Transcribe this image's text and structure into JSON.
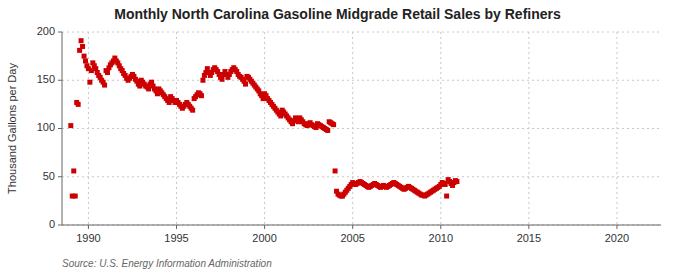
{
  "chart_data": {
    "type": "scatter",
    "title": "Monthly North Carolina Gasoline Midgrade Retail Sales by Refiners",
    "y_label": "Thousand Gallons per Day",
    "source": "Source: U.S. Energy Information Administration",
    "color": "#cc0000",
    "marker": "square",
    "grid": true,
    "xlim": [
      1988.5,
      2022.5
    ],
    "ylim": [
      0,
      200
    ],
    "xticks": [
      1990,
      1995,
      2000,
      2005,
      2010,
      2015,
      2020
    ],
    "yticks": [
      0,
      50,
      100,
      150,
      200
    ],
    "x": [
      1989.0,
      1989.083,
      1989.167,
      1989.25,
      1989.333,
      1989.417,
      1989.5,
      1989.583,
      1989.667,
      1989.75,
      1989.833,
      1989.917,
      1990.0,
      1990.083,
      1990.167,
      1990.25,
      1990.333,
      1990.417,
      1990.5,
      1990.583,
      1990.667,
      1990.75,
      1990.833,
      1990.917,
      1991.0,
      1991.083,
      1991.167,
      1991.25,
      1991.333,
      1991.417,
      1991.5,
      1991.583,
      1991.667,
      1991.75,
      1991.833,
      1991.917,
      1992.0,
      1992.083,
      1992.167,
      1992.25,
      1992.333,
      1992.417,
      1992.5,
      1992.583,
      1992.667,
      1992.75,
      1992.833,
      1992.917,
      1993.0,
      1993.083,
      1993.167,
      1993.25,
      1993.333,
      1993.417,
      1993.5,
      1993.583,
      1993.667,
      1993.75,
      1993.833,
      1993.917,
      1994.0,
      1994.083,
      1994.167,
      1994.25,
      1994.333,
      1994.417,
      1994.5,
      1994.583,
      1994.667,
      1994.75,
      1994.833,
      1994.917,
      1995.0,
      1995.083,
      1995.167,
      1995.25,
      1995.333,
      1995.417,
      1995.5,
      1995.583,
      1995.667,
      1995.75,
      1995.833,
      1995.917,
      1996.0,
      1996.083,
      1996.167,
      1996.25,
      1996.333,
      1996.417,
      1996.5,
      1996.583,
      1996.667,
      1996.75,
      1996.833,
      1996.917,
      1997.0,
      1997.083,
      1997.167,
      1997.25,
      1997.333,
      1997.417,
      1997.5,
      1997.583,
      1997.667,
      1997.75,
      1997.833,
      1997.917,
      1998.0,
      1998.083,
      1998.167,
      1998.25,
      1998.333,
      1998.417,
      1998.5,
      1998.583,
      1998.667,
      1998.75,
      1998.833,
      1998.917,
      1999.0,
      1999.083,
      1999.167,
      1999.25,
      1999.333,
      1999.417,
      1999.5,
      1999.583,
      1999.667,
      1999.75,
      1999.833,
      1999.917,
      2000.0,
      2000.083,
      2000.167,
      2000.25,
      2000.333,
      2000.417,
      2000.5,
      2000.583,
      2000.667,
      2000.75,
      2000.833,
      2000.917,
      2001.0,
      2001.083,
      2001.167,
      2001.25,
      2001.333,
      2001.417,
      2001.5,
      2001.583,
      2001.667,
      2001.75,
      2001.833,
      2001.917,
      2002.0,
      2002.083,
      2002.167,
      2002.25,
      2002.333,
      2002.417,
      2002.5,
      2002.583,
      2002.667,
      2002.75,
      2002.833,
      2002.917,
      2003.0,
      2003.083,
      2003.167,
      2003.25,
      2003.333,
      2003.417,
      2003.5,
      2003.583,
      2003.667,
      2003.75,
      2003.833,
      2003.917,
      2004.0,
      2004.083,
      2004.167,
      2004.25,
      2004.333,
      2004.417,
      2004.5,
      2004.583,
      2004.667,
      2004.75,
      2004.833,
      2004.917,
      2005.0,
      2005.083,
      2005.167,
      2005.25,
      2005.333,
      2005.417,
      2005.5,
      2005.583,
      2005.667,
      2005.75,
      2005.833,
      2005.917,
      2006.0,
      2006.083,
      2006.167,
      2006.25,
      2006.333,
      2006.417,
      2006.5,
      2006.583,
      2006.667,
      2006.75,
      2006.833,
      2006.917,
      2007.0,
      2007.083,
      2007.167,
      2007.25,
      2007.333,
      2007.417,
      2007.5,
      2007.583,
      2007.667,
      2007.75,
      2007.833,
      2007.917,
      2008.0,
      2008.083,
      2008.167,
      2008.25,
      2008.333,
      2008.417,
      2008.5,
      2008.583,
      2008.667,
      2008.75,
      2008.833,
      2008.917,
      2009.0,
      2009.083,
      2009.167,
      2009.25,
      2009.333,
      2009.417,
      2009.5,
      2009.583,
      2009.667,
      2009.75,
      2009.833,
      2009.917,
      2010.0,
      2010.083,
      2010.167,
      2010.25,
      2010.333,
      2010.417,
      2010.5,
      2010.583,
      2010.667,
      2010.75,
      2010.833,
      2010.917
    ],
    "values": [
      103,
      30,
      56,
      30,
      127,
      125,
      181,
      191,
      185,
      175,
      170,
      165,
      162,
      148,
      160,
      168,
      165,
      162,
      158,
      155,
      153,
      150,
      148,
      145,
      160,
      158,
      163,
      166,
      168,
      170,
      173,
      170,
      168,
      165,
      162,
      160,
      157,
      155,
      152,
      150,
      152,
      154,
      156,
      154,
      151,
      149,
      146,
      144,
      150,
      148,
      146,
      144,
      143,
      141,
      146,
      148,
      144,
      141,
      139,
      136,
      141,
      139,
      137,
      135,
      133,
      131,
      129,
      127,
      133,
      131,
      129,
      127,
      129,
      127,
      125,
      123,
      121,
      123,
      125,
      127,
      125,
      123,
      121,
      119,
      131,
      133,
      135,
      137,
      136,
      134,
      150,
      155,
      158,
      162,
      158,
      155,
      158,
      161,
      163,
      161,
      159,
      156,
      153,
      151,
      156,
      159,
      156,
      153,
      156,
      159,
      161,
      163,
      161,
      159,
      156,
      154,
      153,
      151,
      149,
      146,
      154,
      153,
      151,
      149,
      147,
      145,
      143,
      141,
      139,
      136,
      134,
      131,
      136,
      134,
      131,
      129,
      127,
      125,
      123,
      121,
      119,
      117,
      115,
      113,
      119,
      117,
      115,
      113,
      111,
      109,
      107,
      105,
      108,
      111,
      109,
      107,
      111,
      109,
      107,
      105,
      104,
      103,
      105,
      106,
      104,
      103,
      102,
      101,
      105,
      104,
      103,
      102,
      101,
      100,
      99,
      98,
      107,
      106,
      105,
      104,
      56,
      35,
      32,
      31,
      30,
      30,
      32,
      34,
      36,
      38,
      40,
      42,
      44,
      43,
      42,
      43,
      44,
      45,
      44,
      43,
      42,
      41,
      40,
      39,
      40,
      41,
      42,
      43,
      42,
      41,
      40,
      39,
      40,
      41,
      40,
      39,
      40,
      41,
      42,
      43,
      44,
      43,
      42,
      41,
      40,
      39,
      38,
      37,
      38,
      39,
      40,
      39,
      38,
      37,
      36,
      35,
      34,
      33,
      32,
      31,
      31,
      30,
      31,
      32,
      33,
      34,
      35,
      36,
      37,
      38,
      39,
      40,
      42,
      44,
      43,
      42,
      30,
      47,
      45,
      43,
      41,
      44,
      46,
      45
    ]
  }
}
